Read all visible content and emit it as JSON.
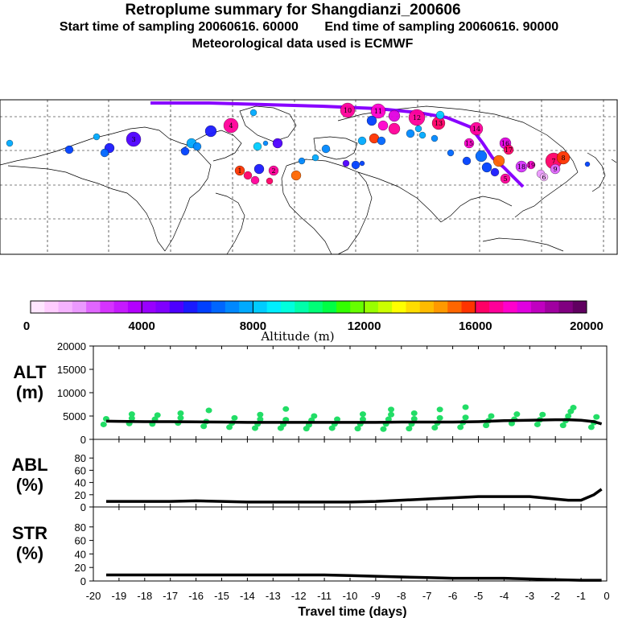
{
  "header": {
    "title": "Retroplume summary for Shangdianzi_200606",
    "start_time": "Start time of sampling 20060616. 60000",
    "end_time": "End time of sampling 20060616. 90000",
    "met_data": "Meteorological data used is ECMWF"
  },
  "colors": {
    "colorbar": [
      "#ffe6ff",
      "#ffccff",
      "#f5b3ff",
      "#eb99ff",
      "#e066ff",
      "#d633ff",
      "#c61aff",
      "#b300ff",
      "#9900ff",
      "#8000ff",
      "#4d00ff",
      "#1a1aff",
      "#0040ff",
      "#0066ff",
      "#0088ff",
      "#00aaff",
      "#00ccff",
      "#00eeff",
      "#00ffdd",
      "#00ffaa",
      "#00ff77",
      "#00ff44",
      "#33ff00",
      "#66ff00",
      "#99ff00",
      "#ccff00",
      "#ffff00",
      "#ffdd00",
      "#ffbb00",
      "#ff9900",
      "#ff6600",
      "#ff3300",
      "#ff0066",
      "#ff0099",
      "#ff00cc",
      "#e000e0",
      "#c000c0",
      "#a000a0",
      "#800080",
      "#600060"
    ],
    "plume": "#8800ff",
    "profile_points": "#22dd66",
    "median_line": "#000000"
  },
  "colorbar": {
    "ticks": [
      "0",
      "4000",
      "8000",
      "12000",
      "16000",
      "20000"
    ],
    "label": "Altitude (m)"
  },
  "map": {
    "track_labels": [
      "10",
      "11",
      "12",
      "13",
      "14",
      "15",
      "16",
      "17",
      "18",
      "19",
      "7",
      "8",
      "9",
      "6",
      "5",
      "4",
      "3",
      "2",
      "1"
    ]
  },
  "chart_data": [
    {
      "type": "line",
      "name": "ALT",
      "label_lines": [
        "ALT",
        "(m)"
      ],
      "ylim": [
        0,
        20000
      ],
      "yticks": [
        "0",
        "5000",
        "10000",
        "15000",
        "20000"
      ],
      "x": [
        -19.5,
        -19,
        -18,
        -17,
        -16,
        -15,
        -14,
        -13,
        -12,
        -11,
        -10,
        -9,
        -8,
        -7,
        -6,
        -5,
        -4,
        -3,
        -2,
        -1.5,
        -1,
        -0.5,
        -0.2
      ],
      "median": [
        3900,
        3850,
        3800,
        3800,
        3750,
        3700,
        3650,
        3650,
        3650,
        3650,
        3650,
        3650,
        3700,
        3700,
        3700,
        3800,
        4000,
        4100,
        4200,
        4200,
        4100,
        3800,
        3300
      ],
      "points": [
        [
          -19.6,
          3200
        ],
        [
          -19.5,
          4400
        ],
        [
          -18.6,
          3400
        ],
        [
          -18.5,
          4500
        ],
        [
          -18.5,
          5400
        ],
        [
          -17.7,
          3300
        ],
        [
          -17.6,
          4300
        ],
        [
          -17.5,
          5200
        ],
        [
          -16.7,
          3500
        ],
        [
          -16.6,
          4600
        ],
        [
          -16.6,
          5600
        ],
        [
          -15.7,
          2800
        ],
        [
          -15.6,
          3800
        ],
        [
          -15.5,
          6200
        ],
        [
          -14.7,
          2600
        ],
        [
          -14.6,
          3500
        ],
        [
          -14.5,
          4600
        ],
        [
          -13.7,
          2400
        ],
        [
          -13.6,
          3300
        ],
        [
          -13.5,
          4300
        ],
        [
          -13.5,
          5300
        ],
        [
          -12.7,
          2400
        ],
        [
          -12.6,
          3200
        ],
        [
          -12.5,
          4200
        ],
        [
          -12.5,
          6500
        ],
        [
          -11.7,
          2300
        ],
        [
          -11.6,
          3100
        ],
        [
          -11.5,
          4100
        ],
        [
          -11.4,
          5000
        ],
        [
          -10.7,
          2400
        ],
        [
          -10.6,
          3300
        ],
        [
          -10.5,
          4300
        ],
        [
          -9.7,
          2300
        ],
        [
          -9.6,
          3300
        ],
        [
          -9.5,
          4300
        ],
        [
          -9.5,
          5400
        ],
        [
          -8.7,
          2200
        ],
        [
          -8.6,
          3300
        ],
        [
          -8.5,
          4300
        ],
        [
          -8.4,
          5300
        ],
        [
          -8.4,
          6400
        ],
        [
          -7.7,
          2300
        ],
        [
          -7.6,
          3300
        ],
        [
          -7.5,
          4400
        ],
        [
          -7.5,
          5600
        ],
        [
          -6.7,
          2500
        ],
        [
          -6.6,
          3500
        ],
        [
          -6.5,
          4600
        ],
        [
          -6.5,
          6400
        ],
        [
          -5.7,
          2600
        ],
        [
          -5.6,
          3600
        ],
        [
          -5.5,
          4700
        ],
        [
          -5.5,
          6900
        ],
        [
          -4.7,
          3000
        ],
        [
          -4.6,
          4000
        ],
        [
          -4.5,
          5000
        ],
        [
          -3.7,
          3400
        ],
        [
          -3.6,
          4300
        ],
        [
          -3.5,
          5400
        ],
        [
          -2.7,
          3200
        ],
        [
          -2.6,
          4200
        ],
        [
          -2.5,
          5300
        ],
        [
          -1.7,
          3000
        ],
        [
          -1.6,
          4000
        ],
        [
          -1.5,
          5000
        ],
        [
          -1.4,
          6000
        ],
        [
          -1.3,
          6800
        ],
        [
          -0.6,
          2600
        ],
        [
          -0.5,
          3600
        ],
        [
          -0.4,
          4800
        ]
      ]
    },
    {
      "type": "line",
      "name": "ABL",
      "label_lines": [
        "ABL",
        "(%)"
      ],
      "ylim": [
        0,
        100
      ],
      "yticks": [
        "0",
        "20",
        "40",
        "60",
        "80"
      ],
      "x": [
        -19.5,
        -19,
        -18,
        -17,
        -16,
        -15,
        -14,
        -13,
        -12,
        -11,
        -10,
        -9,
        -8,
        -7,
        -6,
        -5,
        -4,
        -3,
        -2,
        -1.5,
        -1,
        -0.5,
        -0.2
      ],
      "values": [
        9,
        9,
        9,
        9,
        10,
        9,
        8,
        8,
        8,
        8,
        8,
        9,
        11,
        13,
        15,
        17,
        17,
        17,
        13,
        11,
        11,
        20,
        29
      ]
    },
    {
      "type": "line",
      "name": "STR",
      "label_lines": [
        "STR",
        "(%)"
      ],
      "ylim": [
        0,
        100
      ],
      "yticks": [
        "0",
        "20",
        "40",
        "60",
        "80"
      ],
      "x": [
        -19.5,
        -19,
        -18,
        -17,
        -16,
        -15,
        -14,
        -13,
        -12,
        -11,
        -10,
        -9,
        -8,
        -7,
        -6,
        -5,
        -4,
        -3,
        -2,
        -1,
        -0.5,
        -0.2
      ],
      "values": [
        9,
        9,
        9,
        9,
        9,
        9,
        9,
        9,
        9,
        9,
        8,
        7,
        6,
        5,
        4,
        4,
        4,
        3,
        2,
        1,
        1,
        1
      ],
      "xlabel": "Travel time (days)",
      "xticks": [
        "-20",
        "-19",
        "-18",
        "-17",
        "-16",
        "-15",
        "-14",
        "-13",
        "-12",
        "-11",
        "-10",
        "-9",
        "-8",
        "-7",
        "-6",
        "-5",
        "-4",
        "-3",
        "-2",
        "-1",
        "0"
      ],
      "xlim": [
        -20,
        0
      ]
    }
  ]
}
